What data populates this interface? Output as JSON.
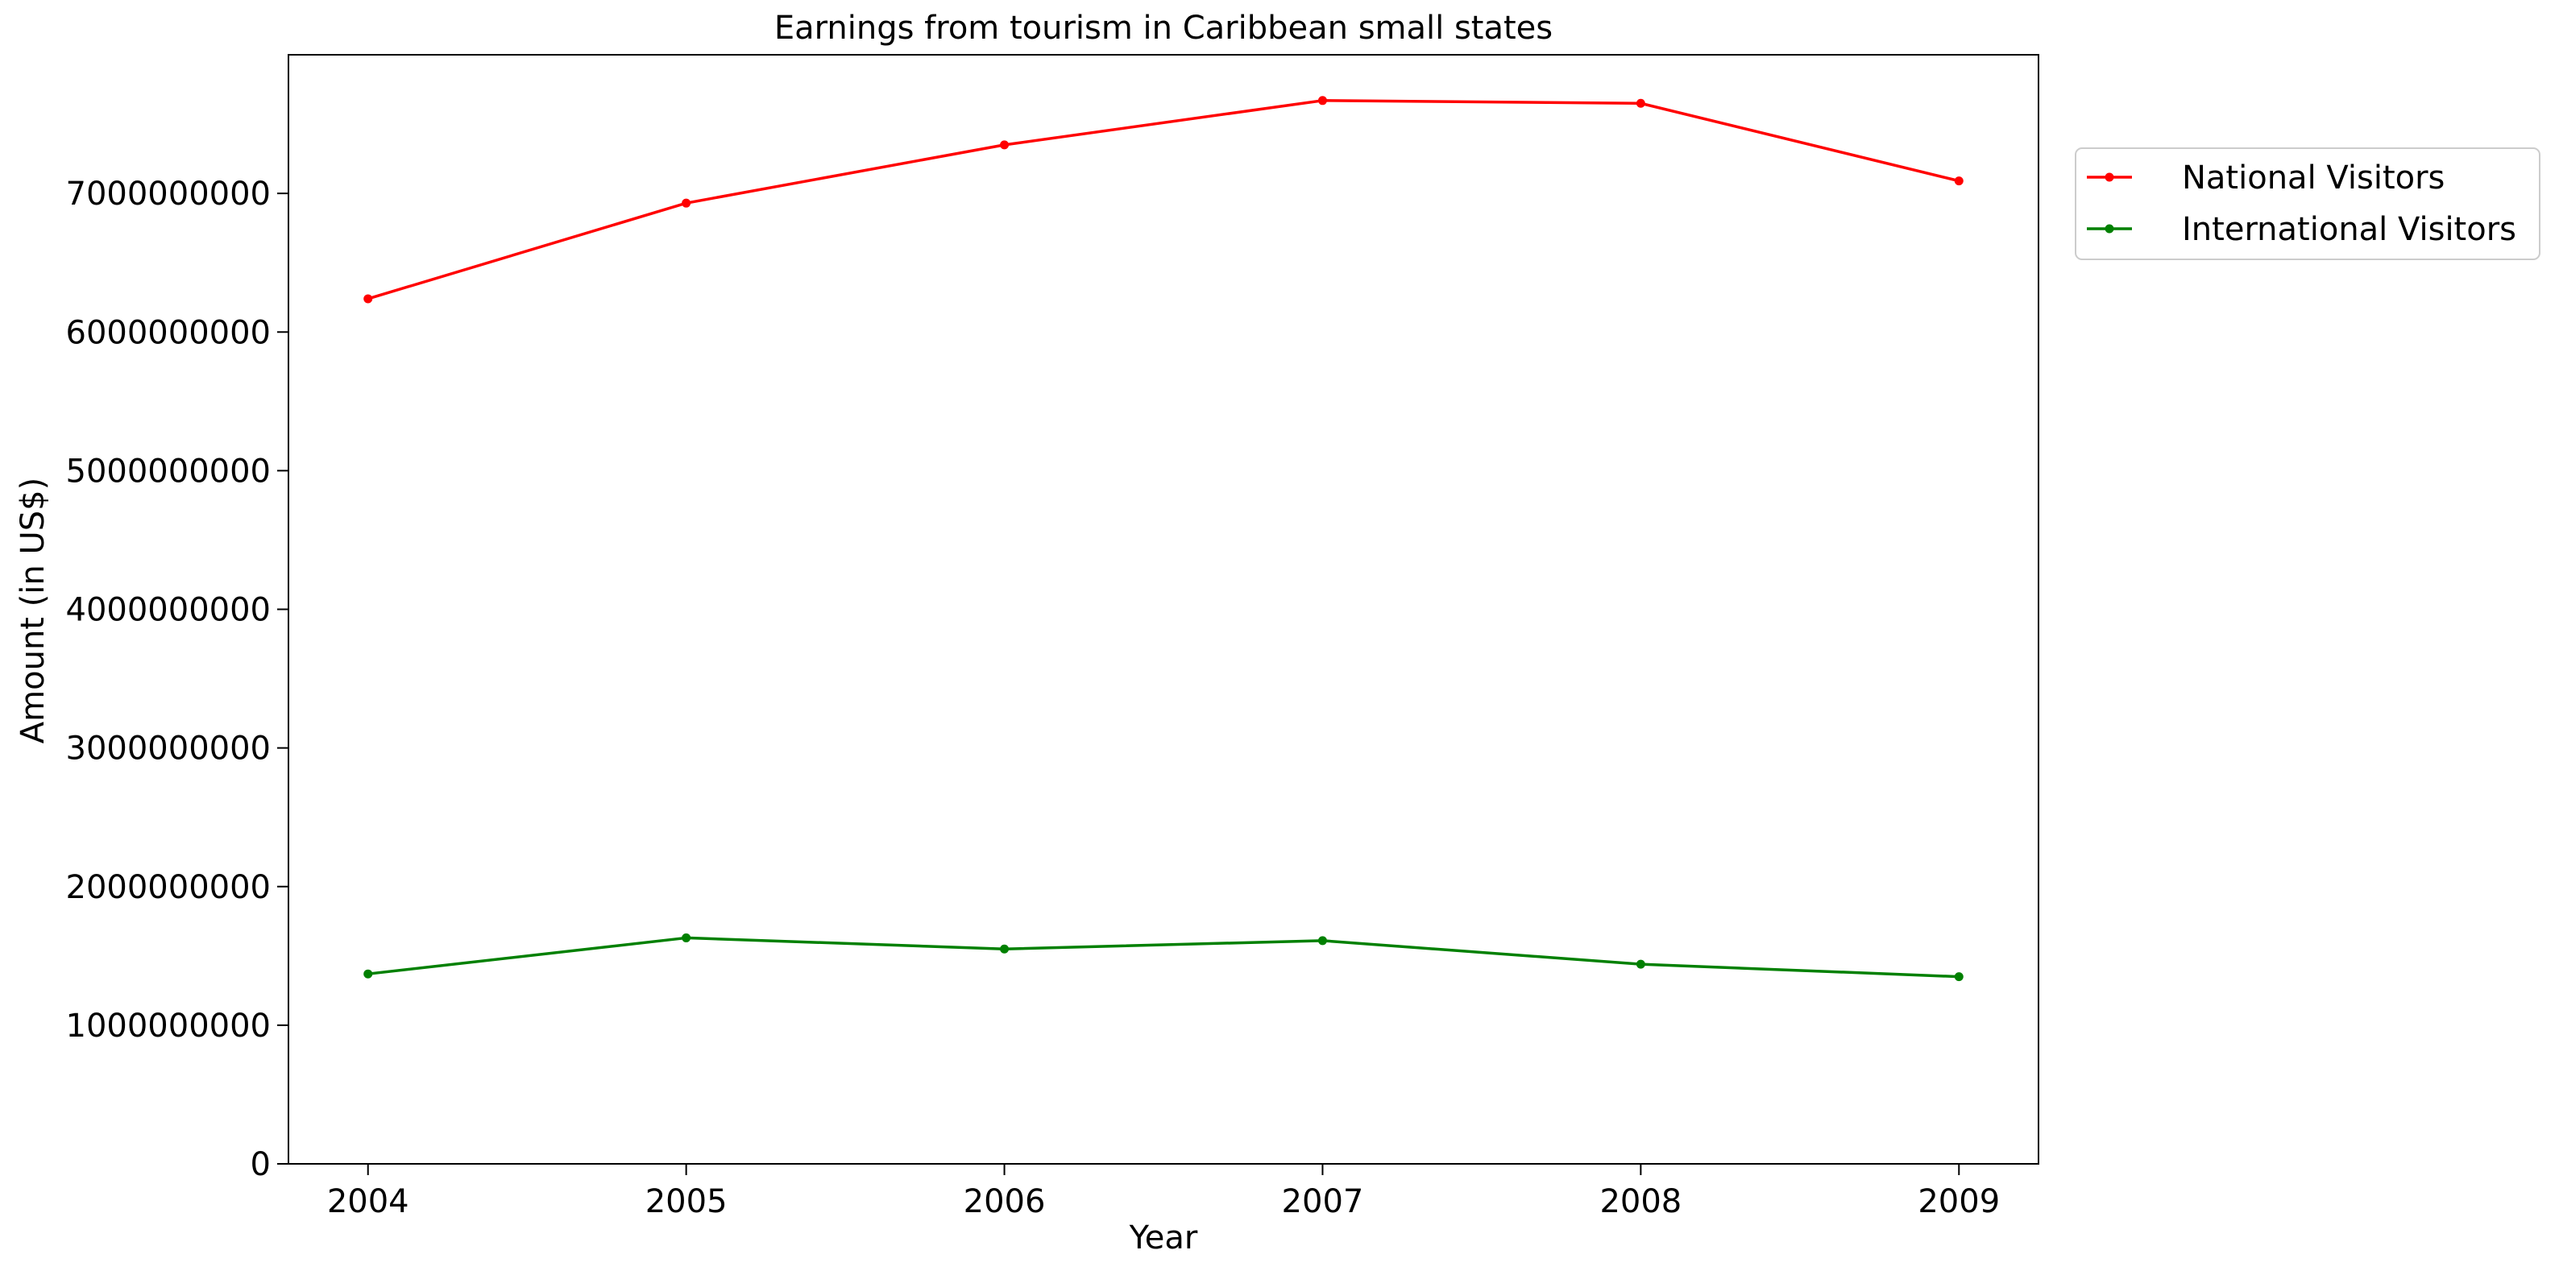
{
  "chart_data": {
    "type": "line",
    "title": "Earnings from tourism in Caribbean small states",
    "xlabel": "Year",
    "ylabel": "Amount (in US$)",
    "x": [
      2004,
      2005,
      2006,
      2007,
      2008,
      2009
    ],
    "x_tick_labels": [
      "2004",
      "2005",
      "2006",
      "2007",
      "2008",
      "2009"
    ],
    "xlim": [
      2003.75,
      2009.25
    ],
    "ylim": [
      0,
      8000000000
    ],
    "y_ticks": [
      0,
      1000000000,
      2000000000,
      3000000000,
      4000000000,
      5000000000,
      6000000000,
      7000000000
    ],
    "y_tick_labels": [
      "0",
      "1000000000",
      "2000000000",
      "3000000000",
      "4000000000",
      "5000000000",
      "6000000000",
      "7000000000"
    ],
    "grid": false,
    "legend_position": "outside-right-top",
    "series": [
      {
        "name": "National Visitors",
        "color": "#ff0000",
        "marker": "dot",
        "values": [
          6240000000,
          6930000000,
          7350000000,
          7670000000,
          7650000000,
          7090000000
        ]
      },
      {
        "name": "International Visitors",
        "color": "#008000",
        "marker": "dot",
        "values": [
          1370000000,
          1630000000,
          1550000000,
          1610000000,
          1440000000,
          1350000000
        ]
      }
    ]
  }
}
